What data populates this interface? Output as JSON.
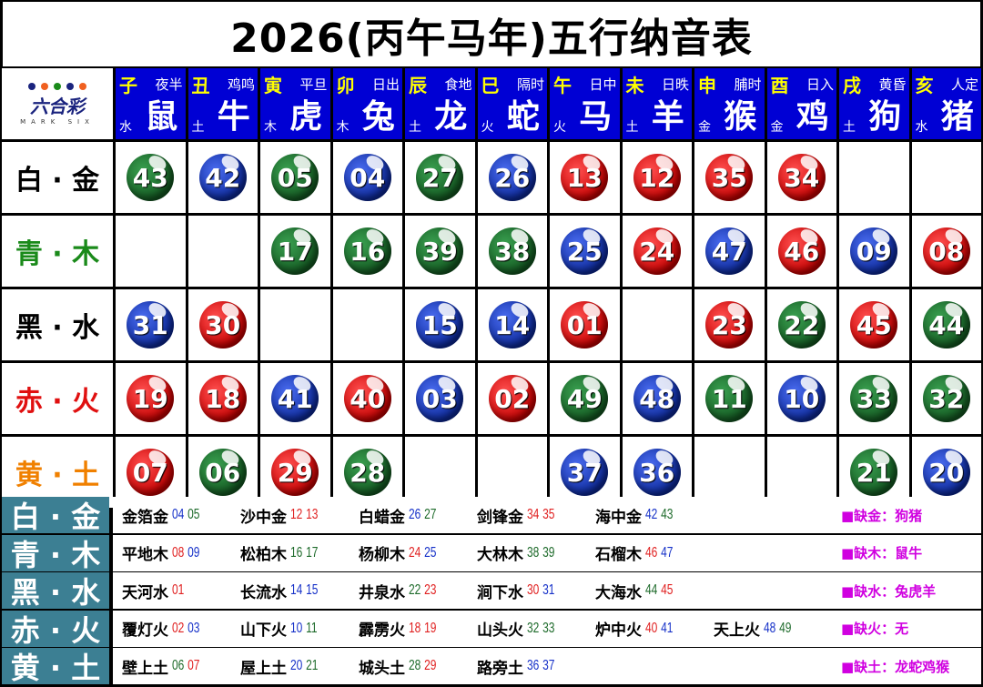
{
  "title": "2026(丙午马年)五行纳音表",
  "logo": {
    "text": "六合彩",
    "sub": "MARK SIX"
  },
  "zodiac": [
    {
      "branch": "子",
      "time": "夜半",
      "element": "水",
      "animal": "鼠"
    },
    {
      "branch": "丑",
      "time": "鸡鸣",
      "element": "土",
      "animal": "牛"
    },
    {
      "branch": "寅",
      "time": "平旦",
      "element": "木",
      "animal": "虎"
    },
    {
      "branch": "卯",
      "time": "日出",
      "element": "木",
      "animal": "兔"
    },
    {
      "branch": "辰",
      "time": "食地",
      "element": "土",
      "animal": "龙"
    },
    {
      "branch": "巳",
      "time": "隔时",
      "element": "火",
      "animal": "蛇"
    },
    {
      "branch": "午",
      "time": "日中",
      "element": "火",
      "animal": "马"
    },
    {
      "branch": "未",
      "time": "日昳",
      "element": "土",
      "animal": "羊"
    },
    {
      "branch": "申",
      "time": "脯时",
      "element": "金",
      "animal": "猴"
    },
    {
      "branch": "酉",
      "time": "日入",
      "element": "金",
      "animal": "鸡"
    },
    {
      "branch": "戌",
      "time": "黄昏",
      "element": "土",
      "animal": "狗"
    },
    {
      "branch": "亥",
      "time": "人定",
      "element": "水",
      "animal": "猪"
    }
  ],
  "colors": {
    "red": "#c80000",
    "blue": "#0d2a9c",
    "green": "#145a22",
    "header": "#0000d4",
    "teal": "#3c7f93",
    "missing": "#d000e0"
  },
  "red_numbers": [
    "01",
    "02",
    "07",
    "08",
    "12",
    "13",
    "18",
    "19",
    "23",
    "24",
    "29",
    "30",
    "34",
    "35",
    "40",
    "45",
    "46"
  ],
  "blue_numbers": [
    "03",
    "04",
    "09",
    "10",
    "14",
    "15",
    "20",
    "25",
    "26",
    "31",
    "36",
    "37",
    "41",
    "42",
    "47",
    "48"
  ],
  "rows": [
    {
      "label": "白 · 金",
      "color": "#000000",
      "balls": [
        "43",
        "42",
        "05",
        "04",
        "27",
        "26",
        "13",
        "12",
        "35",
        "34",
        "",
        ""
      ]
    },
    {
      "label": "青 · 木",
      "color": "#1a8a1a",
      "balls": [
        "",
        "",
        "17",
        "16",
        "39",
        "38",
        "25",
        "24",
        "47",
        "46",
        "09",
        "08"
      ]
    },
    {
      "label": "黑 · 水",
      "color": "#000000",
      "balls": [
        "31",
        "30",
        "",
        "",
        "15",
        "14",
        "01",
        "",
        "23",
        "22",
        "45",
        "44"
      ]
    },
    {
      "label": "赤 · 火",
      "color": "#e01010",
      "balls": [
        "19",
        "18",
        "41",
        "40",
        "03",
        "02",
        "49",
        "48",
        "11",
        "10",
        "33",
        "32"
      ]
    },
    {
      "label": "黄 · 土",
      "color": "#f08000",
      "balls": [
        "07",
        "06",
        "29",
        "28",
        "",
        "",
        "37",
        "36",
        "",
        "",
        "21",
        "20"
      ]
    }
  ],
  "nayin": [
    {
      "label": "白 · 金",
      "items": [
        {
          "name": "金箔金",
          "nums": [
            "04",
            "05"
          ]
        },
        {
          "name": "沙中金",
          "nums": [
            "12",
            "13"
          ]
        },
        {
          "name": "白蜡金",
          "nums": [
            "26",
            "27"
          ]
        },
        {
          "name": "剑锋金",
          "nums": [
            "34",
            "35"
          ]
        },
        {
          "name": "海中金",
          "nums": [
            "42",
            "43"
          ]
        }
      ],
      "missing": "■缺金：狗猪"
    },
    {
      "label": "青 · 木",
      "items": [
        {
          "name": "平地木",
          "nums": [
            "08",
            "09"
          ]
        },
        {
          "name": "松柏木",
          "nums": [
            "16",
            "17"
          ]
        },
        {
          "name": "杨柳木",
          "nums": [
            "24",
            "25"
          ]
        },
        {
          "name": "大林木",
          "nums": [
            "38",
            "39"
          ]
        },
        {
          "name": "石榴木",
          "nums": [
            "46",
            "47"
          ]
        }
      ],
      "missing": "■缺木：鼠牛"
    },
    {
      "label": "黑 · 水",
      "items": [
        {
          "name": "天河水",
          "nums": [
            "01"
          ]
        },
        {
          "name": "长流水",
          "nums": [
            "14",
            "15"
          ]
        },
        {
          "name": "井泉水",
          "nums": [
            "22",
            "23"
          ]
        },
        {
          "name": "涧下水",
          "nums": [
            "30",
            "31"
          ]
        },
        {
          "name": "大海水",
          "nums": [
            "44",
            "45"
          ]
        }
      ],
      "missing": "■缺水：兔虎羊"
    },
    {
      "label": "赤 · 火",
      "items": [
        {
          "name": "覆灯火",
          "nums": [
            "02",
            "03"
          ]
        },
        {
          "name": "山下火",
          "nums": [
            "10",
            "11"
          ]
        },
        {
          "name": "霹雳火",
          "nums": [
            "18",
            "19"
          ]
        },
        {
          "name": "山头火",
          "nums": [
            "32",
            "33"
          ]
        },
        {
          "name": "炉中火",
          "nums": [
            "40",
            "41"
          ]
        },
        {
          "name": "天上火",
          "nums": [
            "48",
            "49"
          ]
        }
      ],
      "missing": "■缺火：无"
    },
    {
      "label": "黄 · 土",
      "items": [
        {
          "name": "壁上土",
          "nums": [
            "06",
            "07"
          ]
        },
        {
          "name": "屋上土",
          "nums": [
            "20",
            "21"
          ]
        },
        {
          "name": "城头土",
          "nums": [
            "28",
            "29"
          ]
        },
        {
          "name": "路旁土",
          "nums": [
            "36",
            "37"
          ]
        }
      ],
      "missing": "■缺土：龙蛇鸡猴"
    }
  ]
}
